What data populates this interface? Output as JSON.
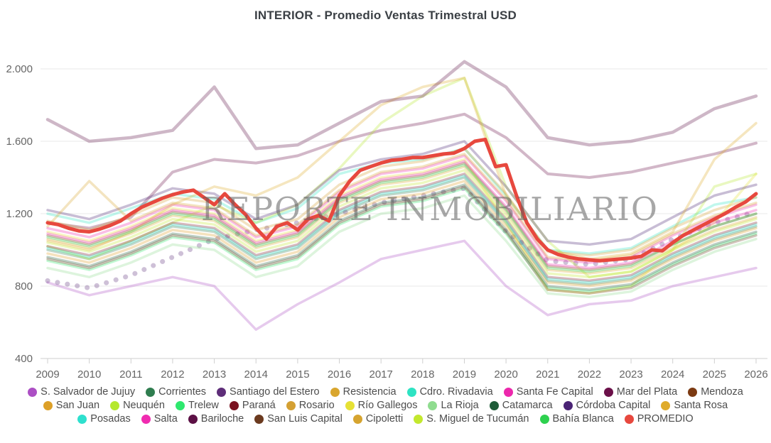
{
  "chart": {
    "title": "INTERIOR - Promedio Ventas Trimestral USD"
  },
  "watermark": {
    "text": "REPORTE INMOBILIARIO"
  },
  "chart_data": {
    "type": "line",
    "title": "INTERIOR - Promedio Ventas Trimestral USD",
    "xlabel": "",
    "ylabel": "",
    "x_years": [
      2009,
      2010,
      2011,
      2012,
      2013,
      2014,
      2015,
      2016,
      2017,
      2018,
      2019,
      2020,
      2021,
      2022,
      2023,
      2024,
      2025,
      2026
    ],
    "x_tick_labels": [
      "2009",
      "2010",
      "2011",
      "2012",
      "2013",
      "2014",
      "2015",
      "2016",
      "2017",
      "2018",
      "2019",
      "2020",
      "2021",
      "2022",
      "2023",
      "2024",
      "2025",
      "2026"
    ],
    "y_ticks": {
      "values": [
        400,
        800,
        1200,
        1600,
        2000
      ],
      "labels": [
        "400",
        "800",
        "1.200",
        "1.600",
        "2.000"
      ]
    },
    "ylim": [
      400,
      2100
    ],
    "grid": "horizontal",
    "legend_position": "bottom",
    "units": "USD",
    "series": [
      {
        "name": "S. Salvador de Jujuy",
        "color": "#AC4FC4",
        "values": [
          820,
          750,
          800,
          850,
          800,
          560,
          700,
          820,
          950,
          1000,
          1050,
          800,
          640,
          700,
          720,
          800,
          850,
          900
        ]
      },
      {
        "name": "Corrientes",
        "color": "#2F7D4F",
        "values": [
          1000,
          950,
          1030,
          1130,
          1100,
          950,
          1010,
          1200,
          1300,
          1330,
          1400,
          1150,
          830,
          810,
          840,
          960,
          1060,
          1130
        ]
      },
      {
        "name": "Santiago del Estero",
        "color": "#5E2D79",
        "dash": "dotted",
        "width": 7,
        "values": [
          830,
          790,
          860,
          960,
          1060,
          1110,
          1150,
          1200,
          1260,
          1300,
          1340,
          1100,
          940,
          920,
          950,
          1060,
          1150,
          1210
        ]
      },
      {
        "name": "Resistencia",
        "color": "#D9A62E",
        "values": [
          1060,
          1010,
          1090,
          1190,
          1160,
          1010,
          1070,
          1260,
          1360,
          1390,
          1460,
          1210,
          890,
          870,
          900,
          1010,
          1110,
          1180
        ]
      },
      {
        "name": "Cdro. Rivadavia",
        "color": "#2EE3C3",
        "values": [
          1200,
          1150,
          1230,
          1310,
          1280,
          1150,
          1230,
          1420,
          1480,
          1500,
          1560,
          1300,
          1000,
          980,
          1010,
          1130,
          1250,
          1290
        ]
      },
      {
        "name": "Santa Fe Capital",
        "color": "#EC27AC",
        "values": [
          1120,
          1070,
          1150,
          1250,
          1220,
          1070,
          1130,
          1320,
          1420,
          1450,
          1520,
          1270,
          950,
          930,
          960,
          1080,
          1180,
          1250
        ]
      },
      {
        "name": "Mar del Plata",
        "color": "#6B1049",
        "width": 4,
        "values": [
          1150,
          1120,
          1180,
          1430,
          1500,
          1480,
          1520,
          1600,
          1660,
          1700,
          1750,
          1620,
          1420,
          1400,
          1430,
          1480,
          1530,
          1590
        ]
      },
      {
        "name": "Mendoza",
        "color": "#7C3A12",
        "values": [
          1080,
          1030,
          1110,
          1210,
          1180,
          1030,
          1090,
          1280,
          1380,
          1410,
          1480,
          1230,
          910,
          890,
          920,
          1030,
          1130,
          1200
        ]
      },
      {
        "name": "San Juan",
        "color": "#DDA028",
        "values": [
          980,
          930,
          1010,
          1110,
          1080,
          930,
          990,
          1180,
          1280,
          1310,
          1380,
          1130,
          820,
          800,
          830,
          950,
          1050,
          1120
        ]
      },
      {
        "name": "Neuquén",
        "color": "#B5E82E",
        "values": [
          1020,
          950,
          1050,
          1150,
          1250,
          1150,
          1250,
          1450,
          1700,
          1850,
          1950,
          1350,
          1050,
          850,
          880,
          1000,
          1350,
          1420
        ]
      },
      {
        "name": "Trelew",
        "color": "#2EE86E",
        "values": [
          940,
          890,
          970,
          1070,
          1040,
          890,
          950,
          1140,
          1240,
          1270,
          1340,
          1090,
          790,
          770,
          800,
          920,
          1020,
          1090
        ]
      },
      {
        "name": "Paraná",
        "color": "#7A1220",
        "values": [
          1020,
          970,
          1050,
          1150,
          1120,
          970,
          1030,
          1220,
          1320,
          1350,
          1420,
          1170,
          850,
          830,
          860,
          980,
          1080,
          1150
        ]
      },
      {
        "name": "Rosario",
        "color": "#D4A033",
        "values": [
          1160,
          1110,
          1190,
          1290,
          1260,
          1110,
          1170,
          1360,
          1460,
          1490,
          1560,
          1310,
          990,
          970,
          1000,
          1120,
          1220,
          1290
        ]
      },
      {
        "name": "Río Gallegos",
        "color": "#E6E135",
        "values": [
          1100,
          1050,
          1130,
          1230,
          1200,
          1050,
          1110,
          1300,
          1400,
          1430,
          1500,
          1150,
          780,
          760,
          800,
          1000,
          1150,
          1420
        ]
      },
      {
        "name": "La Rioja",
        "color": "#8FDC8F",
        "values": [
          900,
          850,
          930,
          1030,
          1000,
          850,
          910,
          1100,
          1200,
          1230,
          1300,
          1050,
          760,
          740,
          770,
          890,
          990,
          1060
        ]
      },
      {
        "name": "Catamarca",
        "color": "#1F5C38",
        "values": [
          960,
          910,
          990,
          1090,
          1060,
          910,
          970,
          1160,
          1260,
          1290,
          1360,
          1110,
          800,
          780,
          810,
          930,
          1030,
          1100
        ]
      },
      {
        "name": "Córdoba Capital",
        "color": "#4A2375",
        "values": [
          1220,
          1170,
          1250,
          1340,
          1310,
          1170,
          1250,
          1440,
          1500,
          1530,
          1600,
          1350,
          1050,
          1030,
          1060,
          1180,
          1300,
          1360
        ]
      },
      {
        "name": "Santa Rosa",
        "color": "#DFAB2A",
        "values": [
          1050,
          1000,
          1100,
          1250,
          1350,
          1300,
          1400,
          1600,
          1800,
          1900,
          1950,
          1300,
          1000,
          950,
          980,
          1100,
          1500,
          1700
        ]
      },
      {
        "name": "Posadas",
        "color": "#2EE0CE",
        "values": [
          1010,
          960,
          1040,
          1140,
          1110,
          960,
          1020,
          1210,
          1310,
          1340,
          1410,
          1160,
          840,
          820,
          850,
          970,
          1070,
          1140
        ]
      },
      {
        "name": "Salta",
        "color": "#F02BB0",
        "values": [
          1090,
          1040,
          1120,
          1220,
          1190,
          1040,
          1100,
          1290,
          1390,
          1420,
          1490,
          1240,
          920,
          900,
          930,
          1050,
          1150,
          1220
        ]
      },
      {
        "name": "Bariloche",
        "color": "#5C1045",
        "width": 4.5,
        "values": [
          1720,
          1600,
          1620,
          1660,
          1900,
          1560,
          1580,
          1700,
          1820,
          1850,
          2040,
          1900,
          1620,
          1580,
          1600,
          1650,
          1780,
          1850
        ]
      },
      {
        "name": "San Luis Capital",
        "color": "#6B3A1F",
        "values": [
          950,
          900,
          980,
          1080,
          1050,
          900,
          960,
          1150,
          1250,
          1280,
          1350,
          1100,
          780,
          760,
          790,
          910,
          1010,
          1080
        ]
      },
      {
        "name": "Cipoletti",
        "color": "#D6A42F",
        "values": [
          1130,
          1380,
          1160,
          1260,
          1230,
          1080,
          1140,
          1330,
          1430,
          1460,
          1530,
          1280,
          960,
          940,
          970,
          1090,
          1190,
          1260
        ]
      },
      {
        "name": "S. Miguel de Tucumán",
        "color": "#C3E82E",
        "values": [
          1040,
          990,
          1070,
          1170,
          1140,
          990,
          1050,
          1240,
          1340,
          1370,
          1440,
          1190,
          870,
          850,
          880,
          1000,
          1100,
          1170
        ]
      },
      {
        "name": "Bahía Blanca",
        "color": "#2ED14F",
        "values": [
          1070,
          1020,
          1100,
          1200,
          1170,
          1020,
          1080,
          1270,
          1370,
          1400,
          1470,
          1220,
          900,
          880,
          910,
          1030,
          1130,
          1200
        ]
      },
      {
        "name": "PROMEDIO",
        "color": "#E7483E",
        "width": 5,
        "alpha": 1,
        "x_step": 0.25,
        "values": [
          1150,
          1140,
          1120,
          1105,
          1100,
          1115,
          1135,
          1160,
          1200,
          1235,
          1260,
          1285,
          1305,
          1320,
          1330,
          1290,
          1250,
          1310,
          1250,
          1195,
          1120,
          1060,
          1130,
          1150,
          1110,
          1170,
          1190,
          1160,
          1300,
          1380,
          1440,
          1460,
          1480,
          1495,
          1500,
          1510,
          1510,
          1520,
          1530,
          1535,
          1560,
          1600,
          1610,
          1460,
          1470,
          1300,
          1150,
          1060,
          1000,
          975,
          960,
          950,
          945,
          940,
          945,
          950,
          955,
          965,
          1000,
          995,
          1040,
          1080,
          1110,
          1140,
          1170,
          1200,
          1235,
          1265,
          1310
        ]
      }
    ]
  }
}
